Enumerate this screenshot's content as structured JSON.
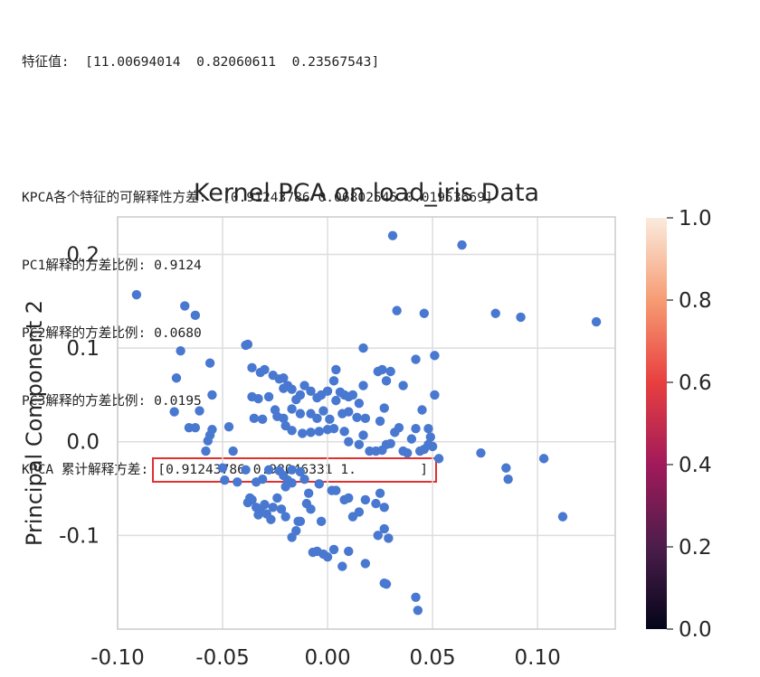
{
  "console": {
    "eigen_label": "特征值:",
    "eigen_values": "[11.00694014  0.82060611  0.23567543]",
    "ratio_label": "KPCA各个特征的可解释性方差:",
    "ratio_values": "[0.91243786 0.06802545 0.01953669]",
    "pc1": "PC1解释的方差比例: 0.9124",
    "pc2": "PC2解释的方差比例: 0.0680",
    "pc3": "PC3解释的方差比例: 0.0195",
    "cum_label": "KPCA 累计解释方差:",
    "cum_values": "[0.91243786 0.98046331 1.        ]"
  },
  "chart_data": {
    "type": "scatter",
    "title": "Kernel PCA on load_iris Data",
    "xlabel": "",
    "ylabel": "Principal Component 2",
    "xlim": [
      -0.1,
      0.137
    ],
    "ylim": [
      -0.2,
      0.24
    ],
    "xticks": [
      "-0.10",
      "-0.05",
      "0.00",
      "0.05",
      "0.10"
    ],
    "xtick_values": [
      -0.1,
      -0.05,
      0.0,
      0.05,
      0.1
    ],
    "yticks": [
      "0.2",
      "0.1",
      "0.0",
      "-0.1"
    ],
    "ytick_values": [
      0.2,
      0.1,
      0.0,
      -0.1
    ],
    "grid": true,
    "point_color": "#4878d0",
    "colorbar": {
      "ticks": [
        "1.0",
        "0.8",
        "0.6",
        "0.4",
        "0.2",
        "0.0"
      ],
      "tick_values": [
        1.0,
        0.8,
        0.6,
        0.4,
        0.2,
        0.0
      ],
      "colormap": "rocket"
    },
    "points": [
      [
        -0.091,
        0.157
      ],
      [
        -0.068,
        0.145
      ],
      [
        -0.063,
        0.135
      ],
      [
        -0.07,
        0.097
      ],
      [
        -0.072,
        0.068
      ],
      [
        -0.073,
        0.032
      ],
      [
        -0.066,
        0.015
      ],
      [
        -0.063,
        0.015
      ],
      [
        -0.061,
        0.033
      ],
      [
        -0.056,
        0.084
      ],
      [
        -0.055,
        0.05
      ],
      [
        -0.055,
        0.013
      ],
      [
        -0.056,
        0.007
      ],
      [
        -0.057,
        0.001
      ],
      [
        -0.058,
        -0.01
      ],
      [
        -0.047,
        0.016
      ],
      [
        -0.045,
        -0.01
      ],
      [
        -0.05,
        -0.028
      ],
      [
        -0.049,
        -0.041
      ],
      [
        -0.043,
        -0.043
      ],
      [
        -0.039,
        0.103
      ],
      [
        -0.038,
        0.104
      ],
      [
        -0.036,
        0.079
      ],
      [
        -0.032,
        0.074
      ],
      [
        -0.03,
        0.077
      ],
      [
        -0.026,
        0.071
      ],
      [
        -0.023,
        0.067
      ],
      [
        -0.021,
        0.068
      ],
      [
        -0.021,
        0.057
      ],
      [
        -0.019,
        0.06
      ],
      [
        -0.017,
        0.056
      ],
      [
        -0.015,
        0.045
      ],
      [
        -0.013,
        0.05
      ],
      [
        -0.011,
        0.06
      ],
      [
        -0.008,
        0.054
      ],
      [
        -0.005,
        0.047
      ],
      [
        -0.003,
        0.05
      ],
      [
        0.0,
        0.054
      ],
      [
        0.003,
        0.065
      ],
      [
        0.004,
        0.077
      ],
      [
        0.006,
        0.053
      ],
      [
        0.008,
        0.05
      ],
      [
        0.01,
        0.048
      ],
      [
        0.012,
        0.05
      ],
      [
        0.015,
        0.041
      ],
      [
        0.017,
        0.06
      ],
      [
        0.017,
        0.1
      ],
      [
        0.024,
        0.075
      ],
      [
        0.026,
        0.077
      ],
      [
        0.028,
        0.065
      ],
      [
        0.03,
        0.075
      ],
      [
        0.027,
        0.036
      ],
      [
        0.025,
        0.022
      ],
      [
        -0.036,
        0.048
      ],
      [
        -0.033,
        0.046
      ],
      [
        -0.028,
        0.048
      ],
      [
        -0.025,
        0.034
      ],
      [
        -0.021,
        0.025
      ],
      [
        -0.017,
        0.035
      ],
      [
        -0.013,
        0.03
      ],
      [
        -0.008,
        0.03
      ],
      [
        -0.005,
        0.025
      ],
      [
        -0.002,
        0.033
      ],
      [
        0.001,
        0.024
      ],
      [
        0.004,
        0.044
      ],
      [
        0.007,
        0.03
      ],
      [
        0.01,
        0.032
      ],
      [
        0.014,
        0.026
      ],
      [
        0.018,
        0.025
      ],
      [
        -0.035,
        0.025
      ],
      [
        -0.031,
        0.024
      ],
      [
        -0.024,
        0.027
      ],
      [
        -0.02,
        0.017
      ],
      [
        -0.017,
        0.012
      ],
      [
        -0.012,
        0.009
      ],
      [
        -0.008,
        0.01
      ],
      [
        -0.004,
        0.011
      ],
      [
        0.0,
        0.013
      ],
      [
        0.003,
        0.014
      ],
      [
        0.008,
        0.011
      ],
      [
        0.01,
        0.0
      ],
      [
        0.015,
        -0.003
      ],
      [
        0.017,
        0.007
      ],
      [
        0.02,
        -0.01
      ],
      [
        0.023,
        -0.01
      ],
      [
        0.026,
        -0.009
      ],
      [
        0.028,
        -0.003
      ],
      [
        0.03,
        -0.002
      ],
      [
        0.032,
        0.01
      ],
      [
        0.034,
        0.015
      ],
      [
        0.036,
        -0.01
      ],
      [
        0.038,
        -0.012
      ],
      [
        0.04,
        0.003
      ],
      [
        0.042,
        0.014
      ],
      [
        0.044,
        -0.01
      ],
      [
        0.046,
        -0.008
      ],
      [
        0.048,
        -0.003
      ],
      [
        0.05,
        -0.005
      ],
      [
        0.049,
        0.005
      ],
      [
        0.051,
        0.05
      ],
      [
        0.051,
        0.092
      ],
      [
        0.048,
        0.014
      ],
      [
        0.045,
        0.034
      ],
      [
        0.042,
        0.088
      ],
      [
        0.036,
        0.06
      ],
      [
        0.033,
        0.14
      ],
      [
        0.031,
        0.22
      ],
      [
        0.046,
        0.137
      ],
      [
        0.064,
        0.21
      ],
      [
        0.08,
        0.137
      ],
      [
        0.092,
        0.133
      ],
      [
        0.128,
        0.128
      ],
      [
        0.053,
        -0.018
      ],
      [
        0.073,
        -0.012
      ],
      [
        0.085,
        -0.028
      ],
      [
        0.086,
        -0.04
      ],
      [
        0.103,
        -0.018
      ],
      [
        0.112,
        -0.08
      ],
      [
        -0.039,
        -0.03
      ],
      [
        -0.034,
        -0.043
      ],
      [
        -0.031,
        -0.04
      ],
      [
        -0.028,
        -0.03
      ],
      [
        -0.023,
        -0.031
      ],
      [
        -0.021,
        -0.036
      ],
      [
        -0.019,
        -0.041
      ],
      [
        -0.017,
        -0.03
      ],
      [
        -0.013,
        -0.032
      ],
      [
        -0.011,
        -0.04
      ],
      [
        -0.009,
        -0.055
      ],
      [
        -0.004,
        -0.045
      ],
      [
        0.002,
        -0.052
      ],
      [
        0.004,
        -0.052
      ],
      [
        0.008,
        -0.062
      ],
      [
        0.01,
        -0.06
      ],
      [
        0.012,
        -0.08
      ],
      [
        0.015,
        -0.075
      ],
      [
        0.018,
        -0.062
      ],
      [
        0.023,
        -0.066
      ],
      [
        0.027,
        -0.07
      ],
      [
        0.025,
        -0.055
      ],
      [
        0.027,
        -0.093
      ],
      [
        0.024,
        -0.1
      ],
      [
        0.029,
        -0.103
      ],
      [
        0.027,
        -0.151
      ],
      [
        0.028,
        -0.152
      ],
      [
        0.042,
        -0.166
      ],
      [
        0.043,
        -0.18
      ],
      [
        0.018,
        -0.13
      ],
      [
        0.01,
        -0.117
      ],
      [
        0.003,
        -0.115
      ],
      [
        0.0,
        -0.123
      ],
      [
        -0.002,
        -0.12
      ],
      [
        -0.005,
        -0.117
      ],
      [
        -0.007,
        -0.118
      ],
      [
        0.007,
        -0.133
      ],
      [
        -0.013,
        -0.085
      ],
      [
        -0.015,
        -0.095
      ],
      [
        -0.017,
        -0.102
      ],
      [
        -0.014,
        -0.085
      ],
      [
        -0.02,
        -0.08
      ],
      [
        -0.022,
        -0.072
      ],
      [
        -0.026,
        -0.07
      ],
      [
        -0.03,
        -0.067
      ],
      [
        -0.032,
        -0.072
      ],
      [
        -0.034,
        -0.07
      ],
      [
        -0.036,
        -0.062
      ],
      [
        -0.037,
        -0.06
      ],
      [
        -0.038,
        -0.065
      ],
      [
        -0.033,
        -0.078
      ],
      [
        -0.029,
        -0.077
      ],
      [
        -0.027,
        -0.083
      ],
      [
        -0.024,
        -0.06
      ],
      [
        -0.02,
        -0.048
      ],
      [
        -0.017,
        -0.044
      ],
      [
        -0.01,
        -0.066
      ],
      [
        -0.008,
        -0.072
      ],
      [
        -0.003,
        -0.085
      ]
    ]
  }
}
